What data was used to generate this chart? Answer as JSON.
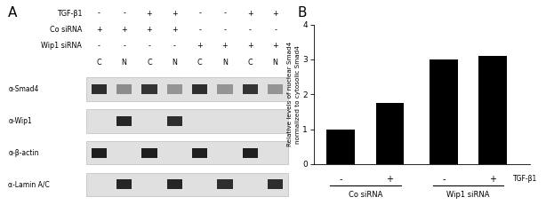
{
  "panel_A_label": "A",
  "panel_B_label": "B",
  "tgf_signs": [
    "-",
    "-",
    "+",
    "+",
    "-",
    "-",
    "+",
    "+"
  ],
  "co_sirna_signs": [
    "+",
    "+",
    "+",
    "+",
    "-",
    "-",
    "-",
    "-"
  ],
  "wip1_sirna_signs": [
    "-",
    "-",
    "-",
    "-",
    "+",
    "+",
    "+",
    "+"
  ],
  "cn_labels": [
    "C",
    "N",
    "C",
    "N",
    "C",
    "N",
    "C",
    "N"
  ],
  "antibody_labels": [
    "α-Smad4",
    "α-Wip1",
    "α-β-actin",
    "α-Lamin A/C"
  ],
  "bar_values": [
    1.0,
    1.75,
    3.0,
    3.1
  ],
  "bar_labels_x": [
    "-",
    "+",
    "-",
    "+"
  ],
  "group_labels": [
    "Co siRNA",
    "Wip1 siRNA"
  ],
  "x_axis_label": "TGF-β1",
  "y_axis_label": "Relative levels of nuclear Smad4\nnormalized to cytosolic Smad4",
  "ylim": [
    0,
    4
  ],
  "yticks": [
    0,
    1,
    2,
    3,
    4
  ],
  "bar_color": "#000000",
  "background_color": "#ffffff",
  "tgf_label": "TGF-β1",
  "co_label": "Co siRNA",
  "wip1_label": "Wip1 siRNA",
  "smad4_band_intensities": [
    0.82,
    0.45,
    0.8,
    0.42,
    0.82,
    0.42,
    0.8,
    0.42
  ],
  "wip1_band_intensities": [
    0.0,
    0.85,
    0.0,
    0.82,
    0.0,
    0.0,
    0.0,
    0.0
  ],
  "bactin_band_intensities": [
    0.88,
    0.0,
    0.88,
    0.0,
    0.88,
    0.0,
    0.88,
    0.0
  ],
  "lamin_band_intensities": [
    0.0,
    0.85,
    0.0,
    0.85,
    0.0,
    0.82,
    0.0,
    0.82
  ],
  "blot_bg_color": "#e0e0e0",
  "blot_bg_color2": "#d8d8d8"
}
